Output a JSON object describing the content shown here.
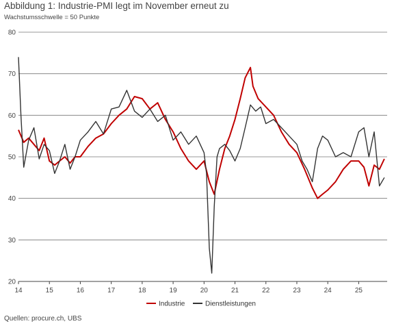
{
  "title": "Abbildung 1: Industrie-PMI legt im November erneut zu",
  "subtitle": "Wachstumsschwelle = 50 Punkte",
  "source": "Quellen: procure.ch, UBS",
  "colors": {
    "industrie": "#c00000",
    "dienstleistungen": "#333333"
  },
  "chart_data": {
    "type": "line",
    "title": "Abbildung 1: Industrie-PMI legt im November erneut zu",
    "subtitle": "Wachstumsschwelle = 50 Punkte",
    "xlabel": "",
    "ylabel": "",
    "xlim": [
      2014.0,
      2025.92
    ],
    "ylim": [
      20,
      80
    ],
    "yticks": [
      20,
      30,
      40,
      50,
      60,
      70,
      80
    ],
    "xticks": [
      2014,
      2015,
      2016,
      2017,
      2018,
      2019,
      2020,
      2021,
      2022,
      2023,
      2024,
      2025
    ],
    "xtick_labels": [
      "14",
      "15",
      "16",
      "17",
      "18",
      "19",
      "20",
      "21",
      "22",
      "23",
      "24",
      "25"
    ],
    "grid": "horizontal",
    "legend_position": "bottom-center",
    "series": [
      {
        "name": "Industrie",
        "x": [
          2014.0,
          2014.17,
          2014.33,
          2014.5,
          2014.67,
          2014.83,
          2015.0,
          2015.17,
          2015.33,
          2015.5,
          2015.67,
          2015.83,
          2016.0,
          2016.25,
          2016.5,
          2016.75,
          2017.0,
          2017.25,
          2017.5,
          2017.75,
          2018.0,
          2018.25,
          2018.5,
          2018.75,
          2019.0,
          2019.25,
          2019.5,
          2019.75,
          2020.0,
          2020.17,
          2020.33,
          2020.5,
          2020.67,
          2020.83,
          2021.0,
          2021.17,
          2021.33,
          2021.5,
          2021.58,
          2021.75,
          2022.0,
          2022.25,
          2022.5,
          2022.75,
          2023.0,
          2023.25,
          2023.5,
          2023.67,
          2023.83,
          2024.0,
          2024.25,
          2024.5,
          2024.75,
          2025.0,
          2025.17,
          2025.33,
          2025.5,
          2025.67,
          2025.83
        ],
        "values": [
          56.5,
          53.5,
          54.5,
          53,
          51.5,
          54.5,
          49,
          48,
          49,
          50,
          48.5,
          50,
          50,
          52.5,
          54.5,
          55.5,
          58,
          60,
          61.5,
          64.5,
          64,
          61.5,
          63,
          59,
          56,
          52,
          49,
          47,
          49,
          44,
          41,
          47,
          52,
          55,
          59,
          64,
          69,
          71.5,
          67,
          64,
          62,
          60,
          56,
          53,
          51,
          47,
          42.5,
          40,
          41,
          42,
          44,
          47,
          49,
          49,
          47.5,
          43,
          48,
          47,
          49.5
        ]
      },
      {
        "name": "Dienstleistungen",
        "x": [
          2014.0,
          2014.08,
          2014.17,
          2014.33,
          2014.5,
          2014.67,
          2014.83,
          2015.0,
          2015.17,
          2015.33,
          2015.5,
          2015.67,
          2015.83,
          2016.0,
          2016.25,
          2016.5,
          2016.75,
          2017.0,
          2017.25,
          2017.5,
          2017.75,
          2018.0,
          2018.25,
          2018.5,
          2018.75,
          2019.0,
          2019.25,
          2019.5,
          2019.75,
          2020.0,
          2020.08,
          2020.17,
          2020.25,
          2020.33,
          2020.42,
          2020.5,
          2020.67,
          2020.83,
          2021.0,
          2021.17,
          2021.33,
          2021.5,
          2021.67,
          2021.83,
          2022.0,
          2022.25,
          2022.5,
          2022.75,
          2023.0,
          2023.17,
          2023.33,
          2023.5,
          2023.67,
          2023.83,
          2024.0,
          2024.25,
          2024.5,
          2024.75,
          2025.0,
          2025.17,
          2025.33,
          2025.5,
          2025.67,
          2025.83
        ],
        "values": [
          74,
          60,
          47.5,
          54,
          57,
          49.5,
          53,
          51.5,
          46,
          49,
          53,
          47,
          50,
          54,
          56,
          58.5,
          55.5,
          61.5,
          62,
          66,
          61,
          59.5,
          61.5,
          58.5,
          60,
          54,
          56,
          53,
          55,
          51,
          46,
          28,
          22,
          38,
          50,
          52,
          53,
          51.5,
          49,
          52,
          57,
          62.5,
          61,
          62,
          58,
          59,
          57,
          55,
          53,
          49,
          47,
          44,
          52,
          55,
          54,
          50,
          51,
          50,
          56,
          57,
          50,
          56,
          43,
          45
        ]
      }
    ]
  }
}
